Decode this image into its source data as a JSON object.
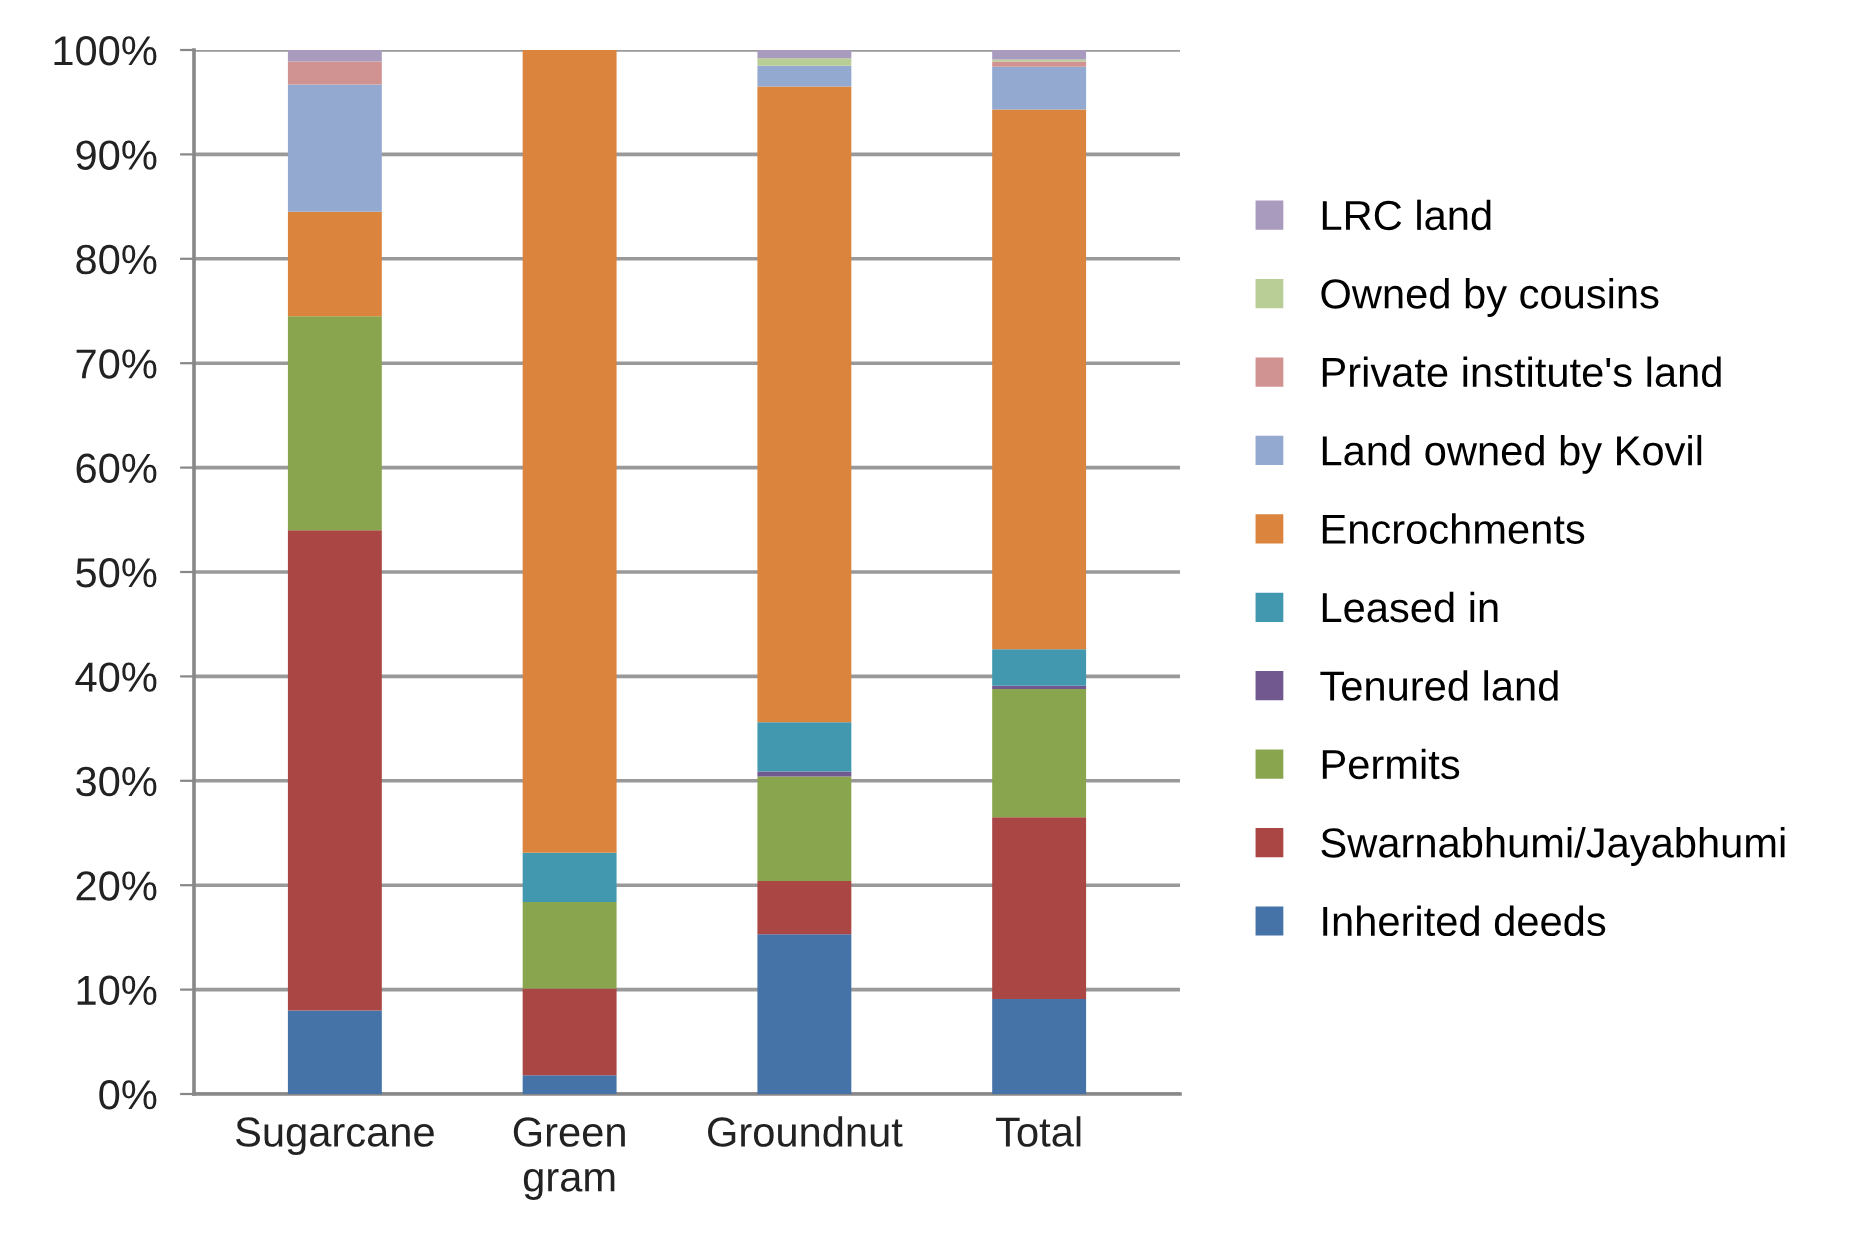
{
  "chart_data": {
    "type": "bar",
    "stacked": true,
    "categories": [
      "Sugarcane",
      "Green\ngram",
      "Groundnut",
      "Total"
    ],
    "series": [
      {
        "name": "Inherited deeds",
        "color": "#4572a7",
        "values": [
          8.0,
          1.8,
          15.3,
          9.1
        ]
      },
      {
        "name": "Swarnabhumi/Jayabhumi",
        "color": "#aa4643",
        "values": [
          46.0,
          8.3,
          5.1,
          17.4
        ]
      },
      {
        "name": "Permits",
        "color": "#89a54e",
        "values": [
          20.5,
          8.3,
          10.0,
          12.3
        ]
      },
      {
        "name": "Tenured land",
        "color": "#71588f",
        "values": [
          0,
          0,
          0.5,
          0.3
        ]
      },
      {
        "name": "Leased in",
        "color": "#4198af",
        "values": [
          0,
          4.7,
          4.7,
          3.5
        ]
      },
      {
        "name": "Encrochments",
        "color": "#db843d",
        "values": [
          10.0,
          76.9,
          60.9,
          51.7
        ]
      },
      {
        "name": "Land owned by Kovil",
        "color": "#93a9cf",
        "values": [
          12.2,
          0,
          2.0,
          4.1
        ]
      },
      {
        "name": "Private institute's land",
        "color": "#d19392",
        "values": [
          2.2,
          0,
          0,
          0.5
        ]
      },
      {
        "name": "Owned by cousins",
        "color": "#b9cd96",
        "values": [
          0,
          0,
          0.7,
          0.2
        ]
      },
      {
        "name": "LRC land",
        "color": "#a99bbd",
        "values": [
          1.1,
          0,
          0.8,
          0.9
        ]
      }
    ],
    "ylim": [
      0,
      100
    ],
    "yticks": [
      {
        "value": 0,
        "label": "0%"
      },
      {
        "value": 10,
        "label": "10%"
      },
      {
        "value": 20,
        "label": "20%"
      },
      {
        "value": 30,
        "label": "30%"
      },
      {
        "value": 40,
        "label": "40%"
      },
      {
        "value": 50,
        "label": "50%"
      },
      {
        "value": 60,
        "label": "60%"
      },
      {
        "value": 70,
        "label": "70%"
      },
      {
        "value": 80,
        "label": "80%"
      },
      {
        "value": 90,
        "label": "90%"
      },
      {
        "value": 100,
        "label": "100%"
      }
    ],
    "grid": "y",
    "legend": "right"
  }
}
